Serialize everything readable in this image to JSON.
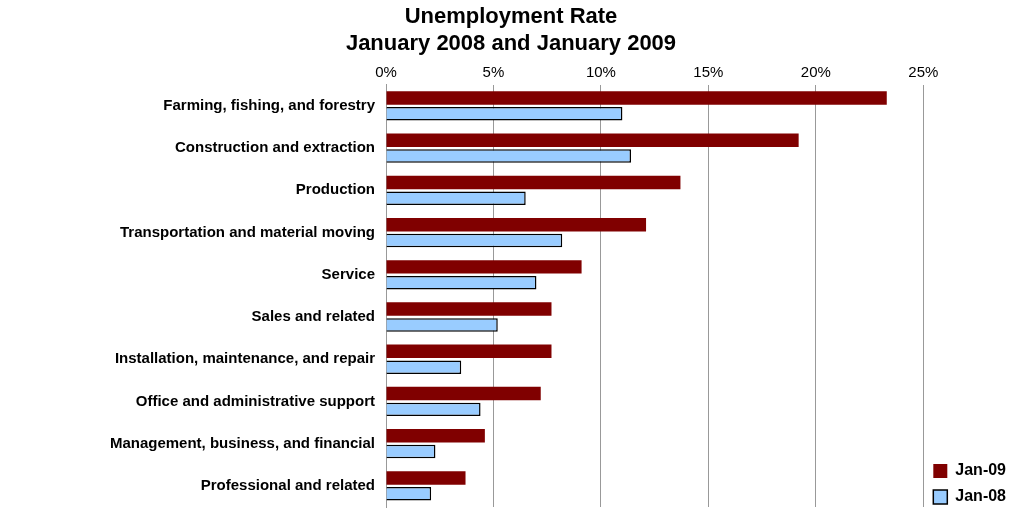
{
  "chart_data": {
    "type": "bar",
    "orientation": "horizontal",
    "title": "Unemployment Rate",
    "subtitle": "January 2008 and January 2009",
    "categories": [
      "Farming, fishing, and forestry",
      "Construction and extraction",
      "Production",
      "Transportation and material moving",
      "Service",
      "Sales and related",
      "Installation, maintenance, and repair",
      "Office and administrative support",
      "Management, business, and financial",
      "Professional and related"
    ],
    "series": [
      {
        "name": "Jan-09",
        "color": "#800000",
        "values": [
          23.3,
          19.2,
          13.7,
          12.1,
          9.1,
          7.7,
          7.7,
          7.2,
          4.6,
          3.7
        ]
      },
      {
        "name": "Jan-08",
        "color": "#99ccff",
        "values": [
          11.0,
          11.4,
          6.5,
          8.2,
          7.0,
          5.2,
          3.5,
          4.4,
          2.3,
          2.1
        ]
      }
    ],
    "xlim": [
      0,
      25
    ],
    "xticks": [
      {
        "value": 0,
        "label": "0%"
      },
      {
        "value": 5,
        "label": "5%"
      },
      {
        "value": 10,
        "label": "10%"
      },
      {
        "value": 15,
        "label": "15%"
      },
      {
        "value": 20,
        "label": "20%"
      },
      {
        "value": 25,
        "label": "25%"
      }
    ],
    "grid": "x",
    "legend": "bottom right"
  }
}
